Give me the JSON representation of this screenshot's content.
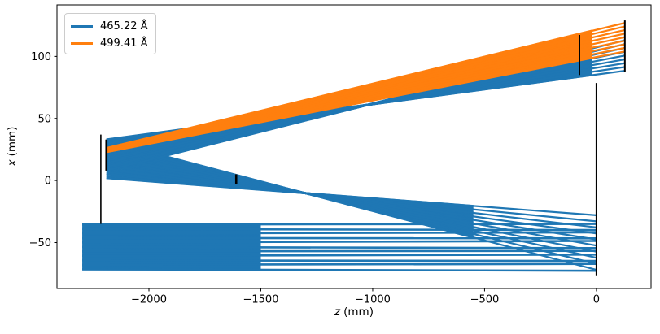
{
  "chart_data": {
    "type": "line",
    "title": "",
    "xlabel": "z (mm)",
    "xlabel_var": "z",
    "xlabel_unit": "(mm)",
    "ylabel": "x (mm)",
    "ylabel_var": "x",
    "ylabel_unit": "(mm)",
    "xlim": [
      -2411,
      244
    ],
    "ylim": [
      -87,
      141.5
    ],
    "xticks": [
      -2000,
      -1500,
      -1000,
      -500,
      0
    ],
    "yticks": [
      -50,
      0,
      50,
      100
    ],
    "grid": false,
    "axis_color": "#000000",
    "legend": {
      "position": "upper left",
      "entries": [
        {
          "label": "465.22 Å",
          "color": "#1f77b4"
        },
        {
          "label": "499.41 Å",
          "color": "#ff7f0e"
        }
      ]
    },
    "optical_elements": [
      {
        "name": "mirror-substrate",
        "z": -2215,
        "x_range": [
          -35,
          37
        ],
        "lw": 1.6
      },
      {
        "name": "grating",
        "z": -2190,
        "x_range": [
          8,
          33
        ],
        "lw": 2.6
      },
      {
        "name": "slit",
        "z": -1610,
        "x_range": [
          -3,
          5
        ],
        "lw": 2.6
      },
      {
        "name": "aperture",
        "z": -76,
        "x_range": [
          85,
          117.3
        ],
        "lw": 2.0
      },
      {
        "name": "mirror",
        "z": 0,
        "x_range": [
          -77,
          78.6
        ],
        "lw": 2.0
      },
      {
        "name": "detector",
        "z": 127,
        "x_range": [
          87.5,
          129
        ],
        "lw": 2.0
      }
    ],
    "ray_bundles": [
      {
        "name": "incoming-beam-dense",
        "color": "#1f77b4",
        "lw": 2.8,
        "n": 24,
        "z0": -2298,
        "z1": -1500,
        "xs": [
          -35.5,
          -71.5
        ],
        "xe": [
          -35.5,
          -71.5
        ]
      },
      {
        "name": "incoming-beam",
        "color": "#1f77b4",
        "lw": 2.6,
        "n": 11,
        "z0": -2298,
        "z1": 0,
        "xs": [
          -35.5,
          -71.5
        ],
        "xe": [
          -35.5,
          -71.5
        ],
        "xe_offsets": [
          0.5,
          -0.8,
          0.9,
          -0.3,
          1.2,
          -1.0,
          0.4,
          1.0,
          -0.5,
          0.7,
          -1.2
        ]
      },
      {
        "name": "slit-fan-dense",
        "color": "#1f77b4",
        "lw": 2.6,
        "n": 20,
        "z0": -2190,
        "z1": -550,
        "xs": [
          2,
          32
        ],
        "xe": [
          -20.5,
          -45.9
        ]
      },
      {
        "name": "slit-fan",
        "color": "#1f77b4",
        "lw": 2.2,
        "n": 10,
        "z0": -2190,
        "z1": 0,
        "xs": [
          2,
          32
        ],
        "xe": [
          -28,
          -72
        ]
      },
      {
        "name": "dispersed-465-dense",
        "color": "#1f77b4",
        "lw": 2.8,
        "n": 22,
        "z0": -2190,
        "z1": -20,
        "xs": [
          8,
          33
        ],
        "xe": [
          106.4,
          85
        ]
      },
      {
        "name": "dispersed-465",
        "color": "#1f77b4",
        "lw": 2.2,
        "n": 9,
        "z0": -2190,
        "z1": 127,
        "xs": [
          8,
          33
        ],
        "xe": [
          113,
          88.4
        ]
      },
      {
        "name": "dispersed-499-dense",
        "color": "#ff7f0e",
        "lw": 2.8,
        "n": 22,
        "z0": -2190,
        "z1": -20,
        "xs": [
          23,
          26
        ],
        "xe": [
          98.9,
          120.6
        ]
      },
      {
        "name": "dispersed-499",
        "color": "#ff7f0e",
        "lw": 2.2,
        "n": 9,
        "z0": -2190,
        "z1": 127,
        "xs": [
          23,
          26
        ],
        "xe": [
          104,
          127
        ]
      }
    ]
  }
}
